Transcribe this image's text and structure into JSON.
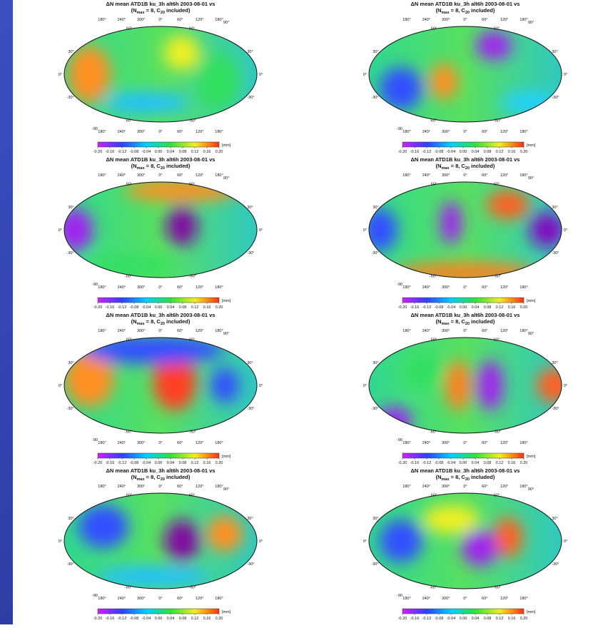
{
  "map_title": "ΔN mean ATD1B ku_3h alt6h 2003-08-01 vs",
  "subtitle": {
    "open": "(N",
    "n_sub": "max",
    "mid": " = 8, C",
    "c_sub": "20",
    "end": " included)"
  },
  "lon_labels": [
    "180°",
    "240°",
    "300°",
    "0°",
    "60°",
    "120°",
    "180°"
  ],
  "lat_labels": [
    "60°",
    "30°",
    "0°",
    "-30°",
    "-60°"
  ],
  "pole_top": "90°",
  "pole_bottom": "-90",
  "colorbar": {
    "unit": "[mm]",
    "range": [
      -0.2,
      0.2
    ],
    "ticks": [
      {
        "value": -0.2,
        "label": "-0.20"
      },
      {
        "value": -0.16,
        "label": "-0.16"
      },
      {
        "value": -0.12,
        "label": "-0.12"
      },
      {
        "value": -0.08,
        "label": "-0.08"
      },
      {
        "value": -0.04,
        "label": "-0.04"
      },
      {
        "value": 0,
        "label": "0.00"
      },
      {
        "value": 0.04,
        "label": "0.04"
      },
      {
        "value": 0.08,
        "label": "0.08"
      },
      {
        "value": 0.12,
        "label": "0.12"
      },
      {
        "value": 0.16,
        "label": "0.16"
      },
      {
        "value": 0.2,
        "label": "0.20"
      }
    ]
  }
}
